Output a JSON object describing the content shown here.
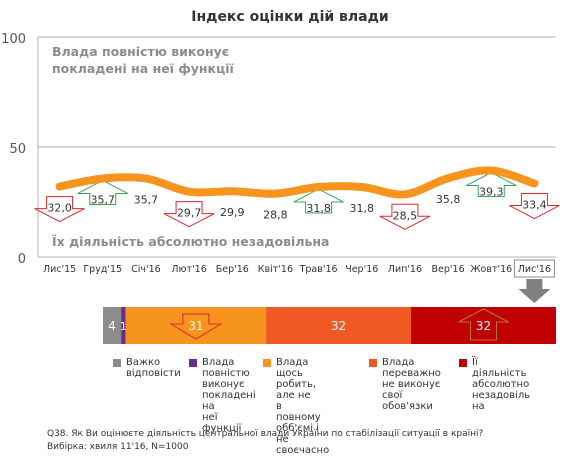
{
  "chart_data": [
    {
      "type": "line",
      "title": "Індекс оцінки дій влади",
      "ylim": [
        0,
        100
      ],
      "yticks": [
        "0",
        "50",
        "100"
      ],
      "grid": true,
      "categories": [
        "Лис'15",
        "Груд'15",
        "Січ'16",
        "Лют'16",
        "Бер'16",
        "Квіт'16",
        "Трав'16",
        "Чер'16",
        "Лип'16",
        "Вер'16",
        "Жовт'16",
        "Лис'16"
      ],
      "values": [
        32.0,
        35.7,
        35.7,
        29.7,
        29.9,
        28.8,
        31.8,
        31.8,
        28.5,
        35.8,
        39.3,
        33.4
      ],
      "value_labels": [
        "32,0",
        "35,7",
        "35,7",
        "29,7",
        "29,9",
        "28,8",
        "31,8",
        "31,8",
        "28,5",
        "35,8",
        "39,3",
        "33,4"
      ],
      "markers": [
        "down",
        "up",
        "none",
        "down",
        "none",
        "none",
        "up",
        "none",
        "down",
        "none",
        "up",
        "down"
      ],
      "annotation_top": [
        "Влада повністю виконує",
        "покладені  на неї функції"
      ],
      "annotation_bottom": "Їх діяльність абсолютно незадовільна",
      "colors": {
        "line": "#f7941d",
        "up": "#3aa655",
        "down": "#e0262b",
        "highlight_arrow": "#808080"
      }
    },
    {
      "type": "bar",
      "stacked": true,
      "categories": [
        "Важко відповісти",
        "Влада повністю виконує покладені на неї функції",
        "Влада щось робить, але не в повному обб'ємі і не своєчасно",
        "Влада переважно не виконує свої обов'язки",
        "Її діяльність абсолютно незадовільна"
      ],
      "values": [
        4,
        1,
        31,
        32,
        32
      ],
      "value_labels": [
        "4",
        "1",
        "31",
        "32",
        "32"
      ],
      "colors": [
        "#8c8c8c",
        "#6b2c8f",
        "#f7941d",
        "#f05a22",
        "#c00000"
      ]
    }
  ],
  "legend": [
    {
      "lines": [
        "Важко",
        "відповісти"
      ],
      "color": "#8c8c8c"
    },
    {
      "lines": [
        "Влада",
        "повністю",
        "виконує",
        "покладені на",
        "неї функції"
      ],
      "color": "#6b2c8f"
    },
    {
      "lines": [
        "Влада щось",
        "робить, але не",
        "в повному",
        "обб'ємі і не",
        "своєчасно"
      ],
      "color": "#f7941d"
    },
    {
      "lines": [
        "Влада",
        "переважно",
        "не виконує",
        "свої",
        "обов'язки"
      ],
      "color": "#f05a22"
    },
    {
      "lines": [
        "Її",
        "діяльність",
        "абсолютно",
        "незадовіль",
        "на"
      ],
      "color": "#c00000"
    }
  ],
  "footnote": {
    "question": "Q38. Як Ви оцінюєте діяльність центральної влади України по стабілізації ситуації в країні?",
    "sample": "Вибірка: хвиля 11'16, N=1000"
  }
}
